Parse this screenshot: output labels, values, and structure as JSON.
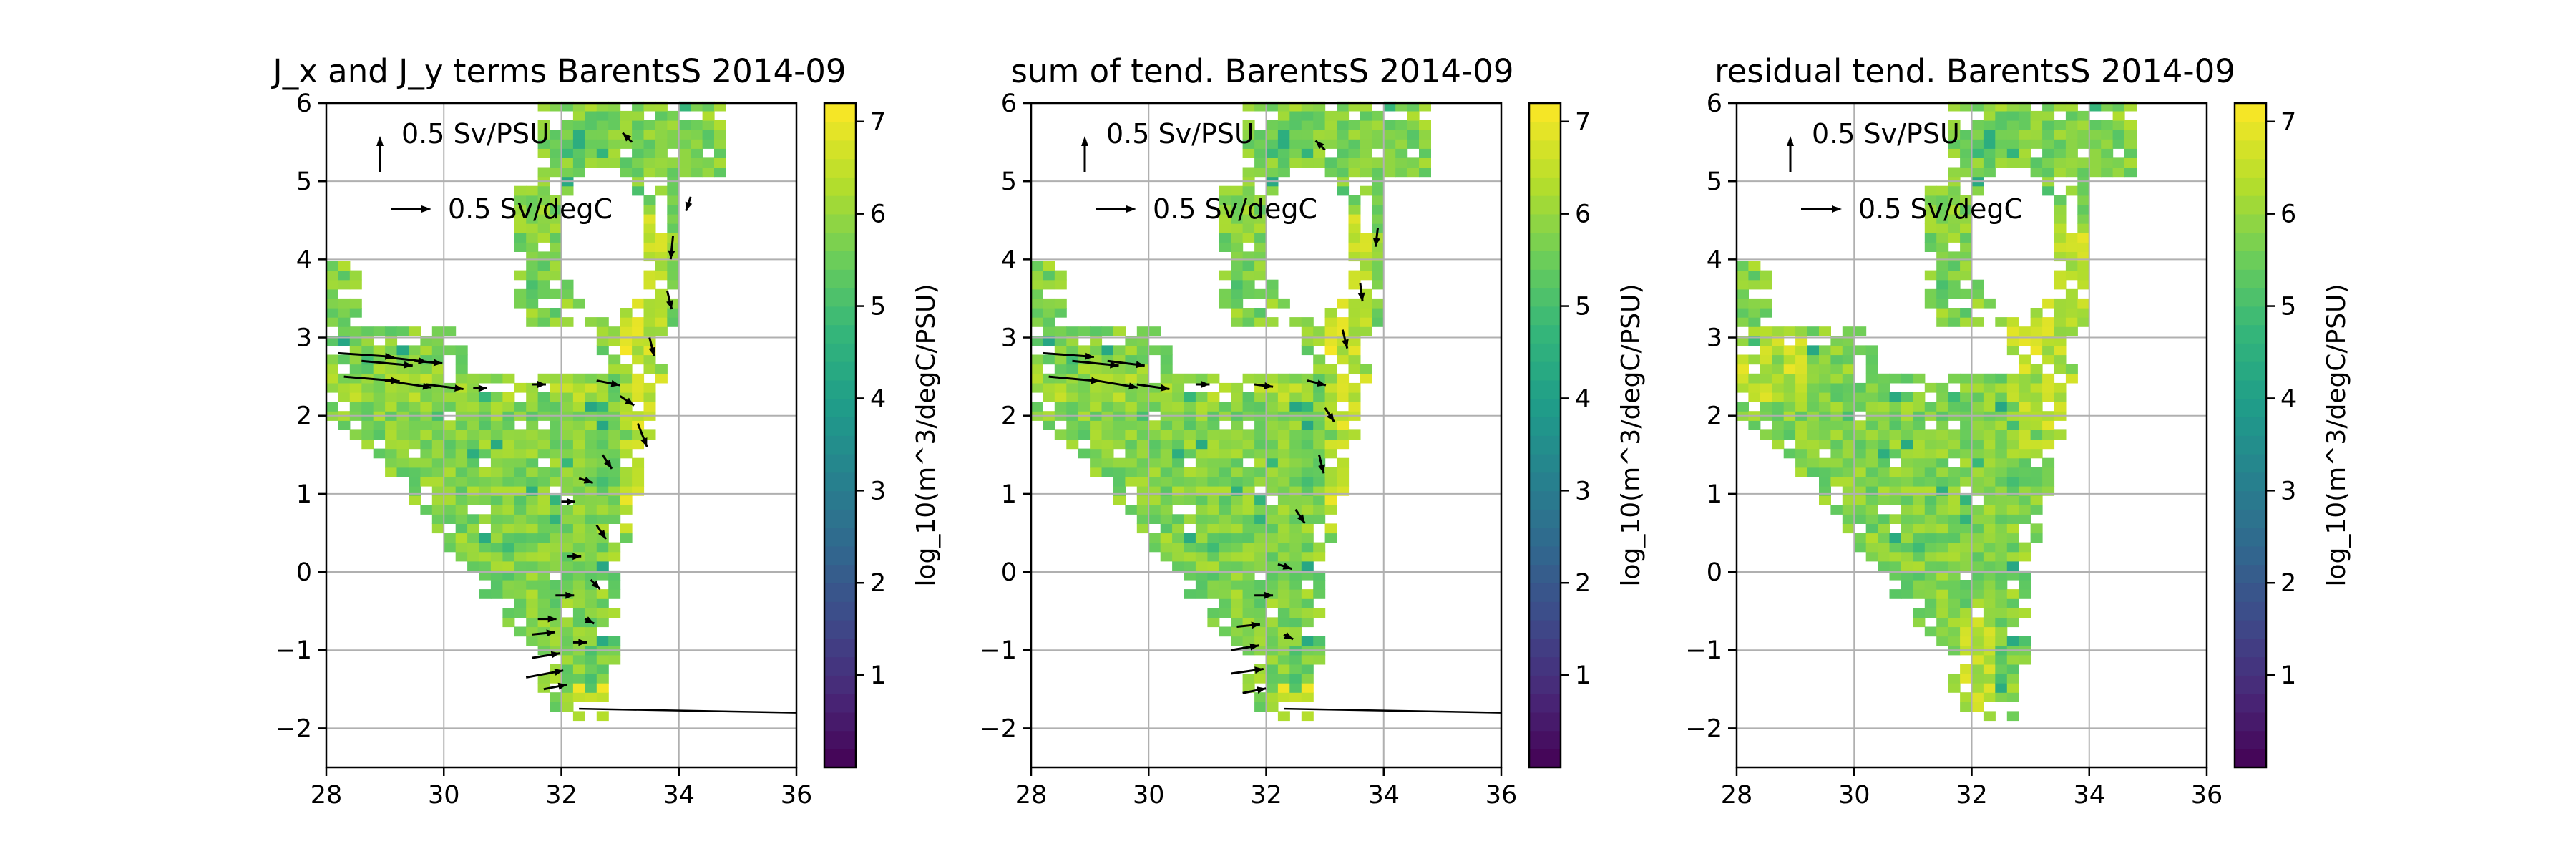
{
  "chart_data": [
    {
      "type": "heatmap",
      "title": "J_x and J_y terms BarentsS 2014-09",
      "xlim": [
        28,
        36
      ],
      "ylim": [
        -2.5,
        6
      ],
      "xticks": [
        28,
        30,
        32,
        34,
        36
      ],
      "yticks": [
        -2,
        -1,
        0,
        1,
        2,
        3,
        4,
        5,
        6
      ],
      "ytick_labels": [
        "−2",
        "−1",
        "0",
        "1",
        "2",
        "3",
        "4",
        "5",
        "6"
      ],
      "grid": true,
      "colorbar": {
        "label": "log_10(m^3/degC/PSU)",
        "range": [
          0,
          7.2
        ],
        "ticks": [
          "1",
          "2",
          "3",
          "4",
          "5",
          "6",
          "7"
        ],
        "colormap": "viridis"
      },
      "quiver_key": [
        {
          "label": "0.5 Sv/PSU",
          "direction": "up"
        },
        {
          "label": "0.5 Sv/degC",
          "direction": "right"
        }
      ],
      "vectors": [
        {
          "x": 28.2,
          "y": 2.8,
          "u": 1.2,
          "v": -0.08
        },
        {
          "x": 28.6,
          "y": 2.7,
          "u": 1.1,
          "v": -0.1
        },
        {
          "x": 29.0,
          "y": 2.75,
          "u": 0.9,
          "v": -0.1
        },
        {
          "x": 29.5,
          "y": 2.7,
          "u": 0.6,
          "v": -0.05
        },
        {
          "x": 28.3,
          "y": 2.5,
          "u": 1.2,
          "v": -0.1
        },
        {
          "x": 29.0,
          "y": 2.45,
          "u": 1.0,
          "v": -0.15
        },
        {
          "x": 29.7,
          "y": 2.4,
          "u": 0.8,
          "v": -0.1
        },
        {
          "x": 30.5,
          "y": 2.35,
          "u": 0.3,
          "v": 0.0
        },
        {
          "x": 31.5,
          "y": 2.4,
          "u": 0.3,
          "v": 0.0
        },
        {
          "x": 32.6,
          "y": 2.45,
          "u": 0.5,
          "v": -0.1
        },
        {
          "x": 33.0,
          "y": 2.25,
          "u": 0.3,
          "v": -0.2
        },
        {
          "x": 33.3,
          "y": 1.9,
          "u": 0.2,
          "v": -0.5
        },
        {
          "x": 33.5,
          "y": 3.0,
          "u": 0.1,
          "v": -0.4
        },
        {
          "x": 33.8,
          "y": 3.6,
          "u": 0.1,
          "v": -0.4
        },
        {
          "x": 33.9,
          "y": 4.3,
          "u": -0.05,
          "v": -0.5
        },
        {
          "x": 34.2,
          "y": 4.8,
          "u": -0.1,
          "v": -0.3
        },
        {
          "x": 33.2,
          "y": 5.5,
          "u": -0.2,
          "v": 0.2
        },
        {
          "x": 32.7,
          "y": 1.5,
          "u": 0.2,
          "v": -0.3
        },
        {
          "x": 32.3,
          "y": 1.2,
          "u": 0.3,
          "v": -0.1
        },
        {
          "x": 32.0,
          "y": 0.9,
          "u": 0.3,
          "v": 0.0
        },
        {
          "x": 32.6,
          "y": 0.6,
          "u": 0.2,
          "v": -0.3
        },
        {
          "x": 32.1,
          "y": 0.2,
          "u": 0.3,
          "v": 0.0
        },
        {
          "x": 32.5,
          "y": -0.1,
          "u": 0.2,
          "v": -0.2
        },
        {
          "x": 31.9,
          "y": -0.3,
          "u": 0.4,
          "v": 0.0
        },
        {
          "x": 31.6,
          "y": -0.6,
          "u": 0.4,
          "v": 0.0
        },
        {
          "x": 31.5,
          "y": -0.8,
          "u": 0.5,
          "v": 0.05
        },
        {
          "x": 31.5,
          "y": -1.1,
          "u": 0.6,
          "v": 0.1
        },
        {
          "x": 31.4,
          "y": -1.35,
          "u": 0.8,
          "v": 0.15
        },
        {
          "x": 31.7,
          "y": -1.5,
          "u": 0.5,
          "v": 0.1
        },
        {
          "x": 32.2,
          "y": -0.9,
          "u": 0.3,
          "v": 0.0
        },
        {
          "x": 32.4,
          "y": -0.6,
          "u": 0.2,
          "v": -0.1
        }
      ],
      "long_arrow": {
        "x": 32.3,
        "y": -1.75,
        "u": 3.7,
        "v": -0.05
      }
    },
    {
      "type": "heatmap",
      "title": "sum of tend. BarentsS 2014-09",
      "xlim": [
        28,
        36
      ],
      "ylim": [
        -2.5,
        6
      ],
      "xticks": [
        28,
        30,
        32,
        34,
        36
      ],
      "yticks": [
        -2,
        -1,
        0,
        1,
        2,
        3,
        4,
        5,
        6
      ],
      "ytick_labels": [
        "−2",
        "−1",
        "0",
        "1",
        "2",
        "3",
        "4",
        "5",
        "6"
      ],
      "grid": true,
      "colorbar": {
        "label": "log_10(m^3/degC/PSU)",
        "range": [
          0,
          7.2
        ],
        "ticks": [
          "1",
          "2",
          "3",
          "4",
          "5",
          "6",
          "7"
        ],
        "colormap": "viridis"
      },
      "quiver_key": [
        {
          "label": "0.5 Sv/PSU",
          "direction": "up"
        },
        {
          "label": "0.5 Sv/degC",
          "direction": "right"
        }
      ],
      "vectors": [
        {
          "x": 28.2,
          "y": 2.8,
          "u": 1.1,
          "v": -0.08
        },
        {
          "x": 28.7,
          "y": 2.7,
          "u": 1.0,
          "v": -0.1
        },
        {
          "x": 29.3,
          "y": 2.7,
          "u": 0.8,
          "v": -0.1
        },
        {
          "x": 28.3,
          "y": 2.5,
          "u": 1.1,
          "v": -0.1
        },
        {
          "x": 29.1,
          "y": 2.45,
          "u": 0.9,
          "v": -0.15
        },
        {
          "x": 29.8,
          "y": 2.4,
          "u": 0.7,
          "v": -0.1
        },
        {
          "x": 30.8,
          "y": 2.4,
          "u": 0.3,
          "v": 0.0
        },
        {
          "x": 31.8,
          "y": 2.4,
          "u": 0.4,
          "v": -0.05
        },
        {
          "x": 32.7,
          "y": 2.45,
          "u": 0.4,
          "v": -0.1
        },
        {
          "x": 33.0,
          "y": 2.1,
          "u": 0.2,
          "v": -0.3
        },
        {
          "x": 33.3,
          "y": 3.1,
          "u": 0.1,
          "v": -0.4
        },
        {
          "x": 33.6,
          "y": 3.7,
          "u": 0.05,
          "v": -0.4
        },
        {
          "x": 33.9,
          "y": 4.4,
          "u": -0.05,
          "v": -0.4
        },
        {
          "x": 33.0,
          "y": 5.4,
          "u": -0.2,
          "v": 0.2
        },
        {
          "x": 32.9,
          "y": 1.5,
          "u": 0.1,
          "v": -0.4
        },
        {
          "x": 32.5,
          "y": 0.8,
          "u": 0.2,
          "v": -0.3
        },
        {
          "x": 32.2,
          "y": 0.1,
          "u": 0.3,
          "v": -0.1
        },
        {
          "x": 31.8,
          "y": -0.3,
          "u": 0.4,
          "v": 0.0
        },
        {
          "x": 31.5,
          "y": -0.7,
          "u": 0.5,
          "v": 0.05
        },
        {
          "x": 31.4,
          "y": -1.0,
          "u": 0.6,
          "v": 0.1
        },
        {
          "x": 31.4,
          "y": -1.3,
          "u": 0.7,
          "v": 0.1
        },
        {
          "x": 31.6,
          "y": -1.55,
          "u": 0.5,
          "v": 0.1
        },
        {
          "x": 32.3,
          "y": -0.8,
          "u": 0.2,
          "v": -0.1
        }
      ],
      "long_arrow": {
        "x": 32.3,
        "y": -1.75,
        "u": 3.7,
        "v": -0.05
      }
    },
    {
      "type": "heatmap",
      "title": "residual tend. BarentsS 2014-09",
      "xlim": [
        28,
        36
      ],
      "ylim": [
        -2.5,
        6
      ],
      "xticks": [
        28,
        30,
        32,
        34,
        36
      ],
      "yticks": [
        -2,
        -1,
        0,
        1,
        2,
        3,
        4,
        5,
        6
      ],
      "ytick_labels": [
        "−2",
        "−1",
        "0",
        "1",
        "2",
        "3",
        "4",
        "5",
        "6"
      ],
      "grid": true,
      "colorbar": {
        "label": "log_10(m^3/degC/PSU)",
        "range": [
          0,
          7.2
        ],
        "ticks": [
          "1",
          "2",
          "3",
          "4",
          "5",
          "6",
          "7"
        ],
        "colormap": "viridis"
      },
      "quiver_key": [
        {
          "label": "0.5 Sv/PSU",
          "direction": "up"
        },
        {
          "label": "0.5 Sv/degC",
          "direction": "right"
        }
      ],
      "vectors": [],
      "long_arrow": null
    }
  ]
}
